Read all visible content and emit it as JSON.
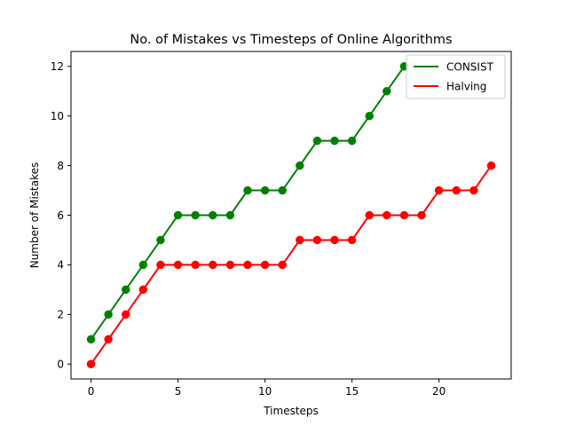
{
  "chart_data": {
    "type": "line",
    "title": "No. of Mistakes vs Timesteps of Online Algorithms",
    "xlabel": "Timesteps",
    "ylabel": "Number of Mistakes",
    "xlim": [
      -1.15,
      24.15
    ],
    "ylim": [
      -0.6,
      12.6
    ],
    "xticks": [
      0,
      5,
      10,
      15,
      20
    ],
    "yticks": [
      0,
      2,
      4,
      6,
      8,
      10,
      12
    ],
    "grid": false,
    "legend_position": "top-right",
    "series": [
      {
        "name": "CONSIST",
        "color": "#008000",
        "x": [
          0,
          1,
          2,
          3,
          4,
          5,
          6,
          7,
          8,
          9,
          10,
          11,
          12,
          13,
          14,
          15,
          16,
          17,
          18
        ],
        "y": [
          1,
          2,
          3,
          4,
          5,
          6,
          6,
          6,
          6,
          7,
          7,
          7,
          8,
          9,
          9,
          9,
          10,
          11,
          12
        ]
      },
      {
        "name": "Halving",
        "color": "#ff0000",
        "x": [
          0,
          1,
          2,
          3,
          4,
          5,
          6,
          7,
          8,
          9,
          10,
          11,
          12,
          13,
          14,
          15,
          16,
          17,
          18,
          19,
          20,
          21,
          22,
          23
        ],
        "y": [
          0,
          1,
          2,
          3,
          4,
          4,
          4,
          4,
          4,
          4,
          4,
          4,
          5,
          5,
          5,
          5,
          6,
          6,
          6,
          6,
          7,
          7,
          7,
          8
        ]
      }
    ]
  }
}
